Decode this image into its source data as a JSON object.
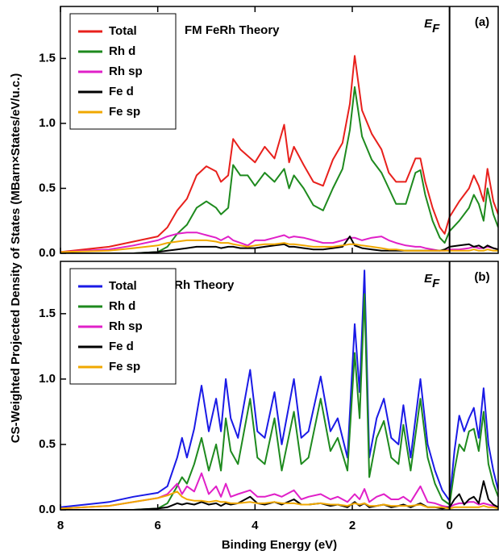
{
  "chart_data": [
    {
      "type": "line",
      "title": "FM FeRh Theory",
      "panel_label": "(a)",
      "ylabel": "CS-Weighted Projected Density of States (MBarn×States/eV/u.c.)",
      "fermi_level": 0,
      "fermi_symbol": "E",
      "fermi_subscript": "F",
      "legend": "upper left",
      "xlim": [
        8,
        -1
      ],
      "ylim": [
        0,
        1.9
      ],
      "xticks": [
        8,
        6,
        4,
        2,
        0
      ],
      "yticks": [
        {
          "value": 0,
          "label": "0.0"
        },
        0.5,
        {
          "value": 1,
          "label": "1.0"
        },
        1.5
      ],
      "x": [
        8,
        7,
        6.5,
        6,
        5.8,
        5.6,
        5.4,
        5.2,
        5.0,
        4.8,
        4.7,
        4.55,
        4.45,
        4.3,
        4.15,
        4.0,
        3.8,
        3.6,
        3.4,
        3.3,
        3.2,
        3.0,
        2.8,
        2.6,
        2.4,
        2.2,
        2.05,
        1.95,
        1.8,
        1.6,
        1.4,
        1.25,
        1.1,
        0.9,
        0.7,
        0.6,
        0.5,
        0.35,
        0.2,
        0.1,
        0,
        -0.2,
        -0.4,
        -0.5,
        -0.6,
        -0.7,
        -0.78,
        -0.9,
        -1
      ],
      "series": [
        {
          "name": "Total",
          "color": "#e8201c",
          "values": [
            0.01,
            0.05,
            0.09,
            0.13,
            0.2,
            0.33,
            0.42,
            0.6,
            0.67,
            0.63,
            0.55,
            0.6,
            0.88,
            0.8,
            0.75,
            0.7,
            0.82,
            0.73,
            0.99,
            0.7,
            0.82,
            0.68,
            0.55,
            0.52,
            0.72,
            0.85,
            1.15,
            1.52,
            1.1,
            0.92,
            0.8,
            0.62,
            0.55,
            0.55,
            0.73,
            0.73,
            0.55,
            0.35,
            0.2,
            0.15,
            0.28,
            0.4,
            0.5,
            0.6,
            0.52,
            0.4,
            0.65,
            0.4,
            0.3
          ]
        },
        {
          "name": "Rh d",
          "color": "#1e8a1e",
          "values": [
            0,
            0,
            0,
            0.01,
            0.05,
            0.15,
            0.22,
            0.35,
            0.4,
            0.35,
            0.3,
            0.35,
            0.68,
            0.6,
            0.6,
            0.52,
            0.62,
            0.55,
            0.65,
            0.5,
            0.6,
            0.5,
            0.37,
            0.33,
            0.5,
            0.65,
            0.95,
            1.28,
            0.9,
            0.72,
            0.62,
            0.5,
            0.38,
            0.38,
            0.62,
            0.64,
            0.45,
            0.25,
            0.12,
            0.08,
            0.17,
            0.25,
            0.35,
            0.45,
            0.38,
            0.25,
            0.5,
            0.3,
            0.2
          ]
        },
        {
          "name": "Rh sp",
          "color": "#e020c8",
          "values": [
            0.01,
            0.03,
            0.06,
            0.1,
            0.13,
            0.15,
            0.16,
            0.16,
            0.14,
            0.12,
            0.1,
            0.13,
            0.1,
            0.08,
            0.06,
            0.1,
            0.1,
            0.12,
            0.14,
            0.12,
            0.13,
            0.12,
            0.1,
            0.08,
            0.08,
            0.1,
            0.12,
            0.12,
            0.1,
            0.12,
            0.13,
            0.1,
            0.08,
            0.06,
            0.05,
            0.05,
            0.04,
            0.03,
            0.02,
            0.02,
            0.03,
            0.03,
            0.04,
            0.05,
            0.04,
            0.04,
            0.05,
            0.04,
            0.03
          ]
        },
        {
          "name": "Fe d",
          "color": "#000000",
          "values": [
            0,
            0,
            0,
            0.01,
            0.02,
            0.03,
            0.04,
            0.05,
            0.05,
            0.05,
            0.04,
            0.05,
            0.05,
            0.04,
            0.04,
            0.04,
            0.05,
            0.06,
            0.07,
            0.05,
            0.05,
            0.04,
            0.03,
            0.03,
            0.04,
            0.05,
            0.13,
            0.06,
            0.04,
            0.03,
            0.02,
            0.02,
            0.02,
            0.02,
            0.02,
            0.02,
            0.02,
            0.02,
            0.02,
            0.03,
            0.05,
            0.06,
            0.07,
            0.05,
            0.06,
            0.04,
            0.06,
            0.04,
            0.03
          ]
        },
        {
          "name": "Fe sp",
          "color": "#f0a800",
          "values": [
            0.01,
            0.02,
            0.04,
            0.06,
            0.08,
            0.09,
            0.1,
            0.1,
            0.1,
            0.09,
            0.08,
            0.08,
            0.07,
            0.06,
            0.05,
            0.06,
            0.07,
            0.07,
            0.08,
            0.07,
            0.07,
            0.06,
            0.05,
            0.05,
            0.05,
            0.06,
            0.07,
            0.07,
            0.06,
            0.05,
            0.04,
            0.03,
            0.03,
            0.02,
            0.02,
            0.02,
            0.02,
            0.02,
            0.02,
            0.02,
            0.02,
            0.02,
            0.02,
            0.03,
            0.02,
            0.02,
            0.03,
            0.02,
            0.02
          ]
        }
      ]
    },
    {
      "type": "line",
      "title": "AFM FeRh Theory",
      "panel_label": "(b)",
      "xlabel": "Binding Energy (eV)",
      "fermi_level": 0,
      "fermi_symbol": "E",
      "fermi_subscript": "F",
      "legend": "upper left",
      "xlim": [
        8,
        -1
      ],
      "ylim": [
        0,
        1.9
      ],
      "xticks": [
        8,
        6,
        4,
        2,
        0
      ],
      "yticks": [
        {
          "value": 0,
          "label": "0.0"
        },
        0.5,
        {
          "value": 1,
          "label": "1.0"
        },
        1.5
      ],
      "x": [
        8,
        7,
        6.5,
        6,
        5.8,
        5.6,
        5.5,
        5.4,
        5.25,
        5.1,
        4.95,
        4.8,
        4.7,
        4.6,
        4.5,
        4.35,
        4.1,
        3.95,
        3.8,
        3.6,
        3.45,
        3.2,
        3.05,
        2.9,
        2.65,
        2.45,
        2.3,
        2.1,
        1.95,
        1.85,
        1.75,
        1.65,
        1.5,
        1.35,
        1.2,
        1.05,
        0.95,
        0.8,
        0.6,
        0.45,
        0.3,
        0.15,
        0,
        -0.1,
        -0.2,
        -0.3,
        -0.4,
        -0.5,
        -0.6,
        -0.7,
        -0.8,
        -0.9,
        -1
      ],
      "series": [
        {
          "name": "Total",
          "color": "#1a1ae6",
          "values": [
            0.02,
            0.06,
            0.1,
            0.13,
            0.18,
            0.4,
            0.55,
            0.4,
            0.62,
            0.95,
            0.6,
            0.85,
            0.6,
            1.0,
            0.7,
            0.55,
            1.07,
            0.6,
            0.55,
            0.9,
            0.5,
            1.0,
            0.55,
            0.6,
            1.02,
            0.6,
            0.7,
            0.4,
            1.42,
            0.9,
            1.83,
            0.4,
            0.7,
            0.85,
            0.55,
            0.5,
            0.8,
            0.4,
            1.0,
            0.5,
            0.3,
            0.15,
            0.07,
            0.45,
            0.72,
            0.6,
            0.7,
            0.78,
            0.55,
            0.93,
            0.5,
            0.3,
            0.15
          ]
        },
        {
          "name": "Rh d",
          "color": "#1e8a1e",
          "values": [
            0,
            0,
            0,
            0.01,
            0.05,
            0.18,
            0.25,
            0.2,
            0.35,
            0.55,
            0.3,
            0.5,
            0.3,
            0.7,
            0.45,
            0.35,
            0.85,
            0.4,
            0.35,
            0.7,
            0.3,
            0.75,
            0.35,
            0.4,
            0.85,
            0.45,
            0.55,
            0.3,
            1.2,
            0.7,
            1.65,
            0.25,
            0.55,
            0.68,
            0.4,
            0.35,
            0.65,
            0.3,
            0.85,
            0.4,
            0.2,
            0.08,
            0.04,
            0.3,
            0.5,
            0.45,
            0.6,
            0.62,
            0.45,
            0.75,
            0.35,
            0.2,
            0.1
          ]
        },
        {
          "name": "Rh sp",
          "color": "#e020c8",
          "values": [
            0.01,
            0.03,
            0.06,
            0.09,
            0.12,
            0.2,
            0.12,
            0.18,
            0.14,
            0.28,
            0.12,
            0.18,
            0.1,
            0.2,
            0.1,
            0.12,
            0.15,
            0.1,
            0.1,
            0.12,
            0.1,
            0.15,
            0.08,
            0.1,
            0.12,
            0.08,
            0.1,
            0.06,
            0.12,
            0.08,
            0.16,
            0.06,
            0.1,
            0.12,
            0.08,
            0.08,
            0.1,
            0.06,
            0.18,
            0.06,
            0.05,
            0.03,
            0.02,
            0.04,
            0.05,
            0.05,
            0.06,
            0.06,
            0.04,
            0.05,
            0.04,
            0.03,
            0.02
          ]
        },
        {
          "name": "Fe d",
          "color": "#000000",
          "values": [
            0,
            0,
            0,
            0.01,
            0.02,
            0.05,
            0.04,
            0.05,
            0.04,
            0.06,
            0.04,
            0.05,
            0.03,
            0.05,
            0.04,
            0.05,
            0.1,
            0.05,
            0.04,
            0.06,
            0.04,
            0.08,
            0.04,
            0.04,
            0.05,
            0.03,
            0.04,
            0.02,
            0.06,
            0.03,
            0.05,
            0.02,
            0.03,
            0.04,
            0.02,
            0.03,
            0.04,
            0.02,
            0.05,
            0.02,
            0.02,
            0.01,
            0.02,
            0.08,
            0.12,
            0.04,
            0.08,
            0.1,
            0.05,
            0.22,
            0.08,
            0.04,
            0.02
          ]
        },
        {
          "name": "Fe sp",
          "color": "#f0a800",
          "values": [
            0.01,
            0.03,
            0.06,
            0.09,
            0.11,
            0.14,
            0.1,
            0.08,
            0.07,
            0.07,
            0.06,
            0.07,
            0.06,
            0.06,
            0.05,
            0.05,
            0.06,
            0.05,
            0.05,
            0.06,
            0.05,
            0.05,
            0.04,
            0.04,
            0.05,
            0.04,
            0.04,
            0.03,
            0.05,
            0.04,
            0.05,
            0.03,
            0.03,
            0.04,
            0.03,
            0.03,
            0.03,
            0.03,
            0.04,
            0.02,
            0.02,
            0.02,
            0.01,
            0.02,
            0.02,
            0.02,
            0.02,
            0.02,
            0.02,
            0.03,
            0.02,
            0.02,
            0.01
          ]
        }
      ]
    }
  ]
}
